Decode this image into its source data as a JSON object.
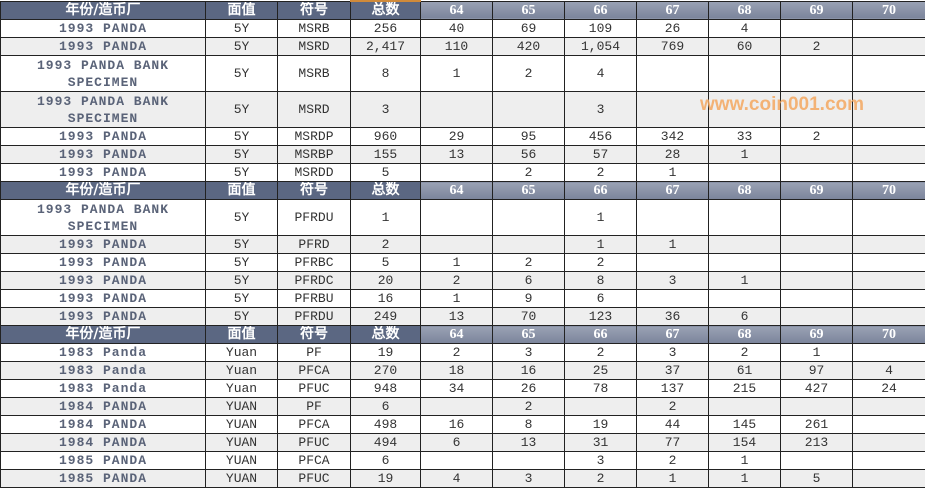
{
  "headers": [
    "年份/造币厂",
    "面值",
    "符号",
    "总数",
    "64",
    "65",
    "66",
    "67",
    "68",
    "69",
    "70"
  ],
  "sections": [
    {
      "rows": [
        [
          "1993 PANDA",
          "5Y",
          "MSRB",
          "256",
          "40",
          "69",
          "109",
          "26",
          "4",
          "",
          ""
        ],
        [
          "1993 PANDA",
          "5Y",
          "MSRD",
          "2,417",
          "110",
          "420",
          "1,054",
          "769",
          "60",
          "2",
          ""
        ],
        [
          "1993 PANDA BANK SPECIMEN",
          "5Y",
          "MSRB",
          "8",
          "1",
          "2",
          "4",
          "",
          "",
          "",
          ""
        ],
        [
          "1993 PANDA BANK SPECIMEN",
          "5Y",
          "MSRD",
          "3",
          "",
          "",
          "3",
          "",
          "",
          "",
          ""
        ],
        [
          "1993 PANDA",
          "5Y",
          "MSRDP",
          "960",
          "29",
          "95",
          "456",
          "342",
          "33",
          "2",
          ""
        ],
        [
          "1993 PANDA",
          "5Y",
          "MSRBP",
          "155",
          "13",
          "56",
          "57",
          "28",
          "1",
          "",
          ""
        ],
        [
          "1993 PANDA",
          "5Y",
          "MSRDD",
          "5",
          "",
          "2",
          "2",
          "1",
          "",
          "",
          ""
        ]
      ]
    },
    {
      "rows": [
        [
          "1993 PANDA BANK SPECIMEN",
          "5Y",
          "PFRDU",
          "1",
          "",
          "",
          "1",
          "",
          "",
          "",
          ""
        ],
        [
          "1993 PANDA",
          "5Y",
          "PFRD",
          "2",
          "",
          "",
          "1",
          "1",
          "",
          "",
          ""
        ],
        [
          "1993 PANDA",
          "5Y",
          "PFRBC",
          "5",
          "1",
          "2",
          "2",
          "",
          "",
          "",
          ""
        ],
        [
          "1993 PANDA",
          "5Y",
          "PFRDC",
          "20",
          "2",
          "6",
          "8",
          "3",
          "1",
          "",
          ""
        ],
        [
          "1993 PANDA",
          "5Y",
          "PFRBU",
          "16",
          "1",
          "9",
          "6",
          "",
          "",
          "",
          ""
        ],
        [
          "1993 PANDA",
          "5Y",
          "PFRDU",
          "249",
          "13",
          "70",
          "123",
          "36",
          "6",
          "",
          ""
        ]
      ]
    },
    {
      "rows": [
        [
          "1983 Panda",
          "Yuan",
          "PF",
          "19",
          "2",
          "3",
          "2",
          "3",
          "2",
          "1",
          ""
        ],
        [
          "1983 Panda",
          "Yuan",
          "PFCA",
          "270",
          "18",
          "16",
          "25",
          "37",
          "61",
          "97",
          "4"
        ],
        [
          "1983 Panda",
          "Yuan",
          "PFUC",
          "948",
          "34",
          "26",
          "78",
          "137",
          "215",
          "427",
          "24"
        ],
        [
          "1984 PANDA",
          "YUAN",
          "PF",
          "6",
          "",
          "2",
          "",
          "2",
          "",
          "",
          ""
        ],
        [
          "1984 PANDA",
          "YUAN",
          "PFCA",
          "498",
          "16",
          "8",
          "19",
          "44",
          "145",
          "261",
          ""
        ],
        [
          "1984 PANDA",
          "YUAN",
          "PFUC",
          "494",
          "6",
          "13",
          "31",
          "77",
          "154",
          "213",
          ""
        ],
        [
          "1985 PANDA",
          "YUAN",
          "PFCA",
          "6",
          "",
          "",
          "3",
          "2",
          "1",
          "",
          ""
        ],
        [
          "1985 PANDA",
          "YUAN",
          "PFUC",
          "19",
          "4",
          "3",
          "2",
          "1",
          "1",
          "5",
          ""
        ]
      ]
    }
  ],
  "watermark": "www.coin001.com",
  "colors": {
    "header_dark": "#5b6782",
    "header_light": "#8a93a8",
    "name_text": "#5a6378",
    "watermark": "#f4a860"
  }
}
